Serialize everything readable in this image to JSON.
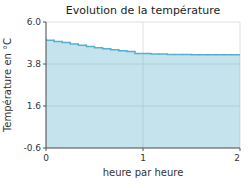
{
  "chart_data": {
    "type": "step",
    "title": "Evolution de la température",
    "x_label": "heure par heure",
    "y_label": "Température en °C",
    "x": [
      0.0,
      0.083,
      0.167,
      0.25,
      0.333,
      0.417,
      0.5,
      0.583,
      0.667,
      0.75,
      0.833,
      0.917,
      1.0,
      1.083,
      1.167,
      1.25,
      1.333,
      1.417,
      1.5,
      1.583,
      1.667,
      1.75,
      1.833,
      1.917,
      2.0
    ],
    "values": [
      5.1,
      5.05,
      4.98,
      4.92,
      4.85,
      4.78,
      4.72,
      4.65,
      4.6,
      4.55,
      4.5,
      4.45,
      4.35,
      4.35,
      4.33,
      4.32,
      4.3,
      4.3,
      4.3,
      4.28,
      4.28,
      4.28,
      4.28,
      4.28,
      4.28
    ],
    "color": "#5ab0cc",
    "xlim": [
      0,
      2
    ],
    "ylim": [
      -0.6,
      6.0
    ],
    "xticks": [
      0,
      1,
      2
    ],
    "yticks": [
      -0.6,
      1.6,
      3.8,
      {
        "value": 6.0,
        "label": "6.0"
      }
    ],
    "grid": true
  }
}
